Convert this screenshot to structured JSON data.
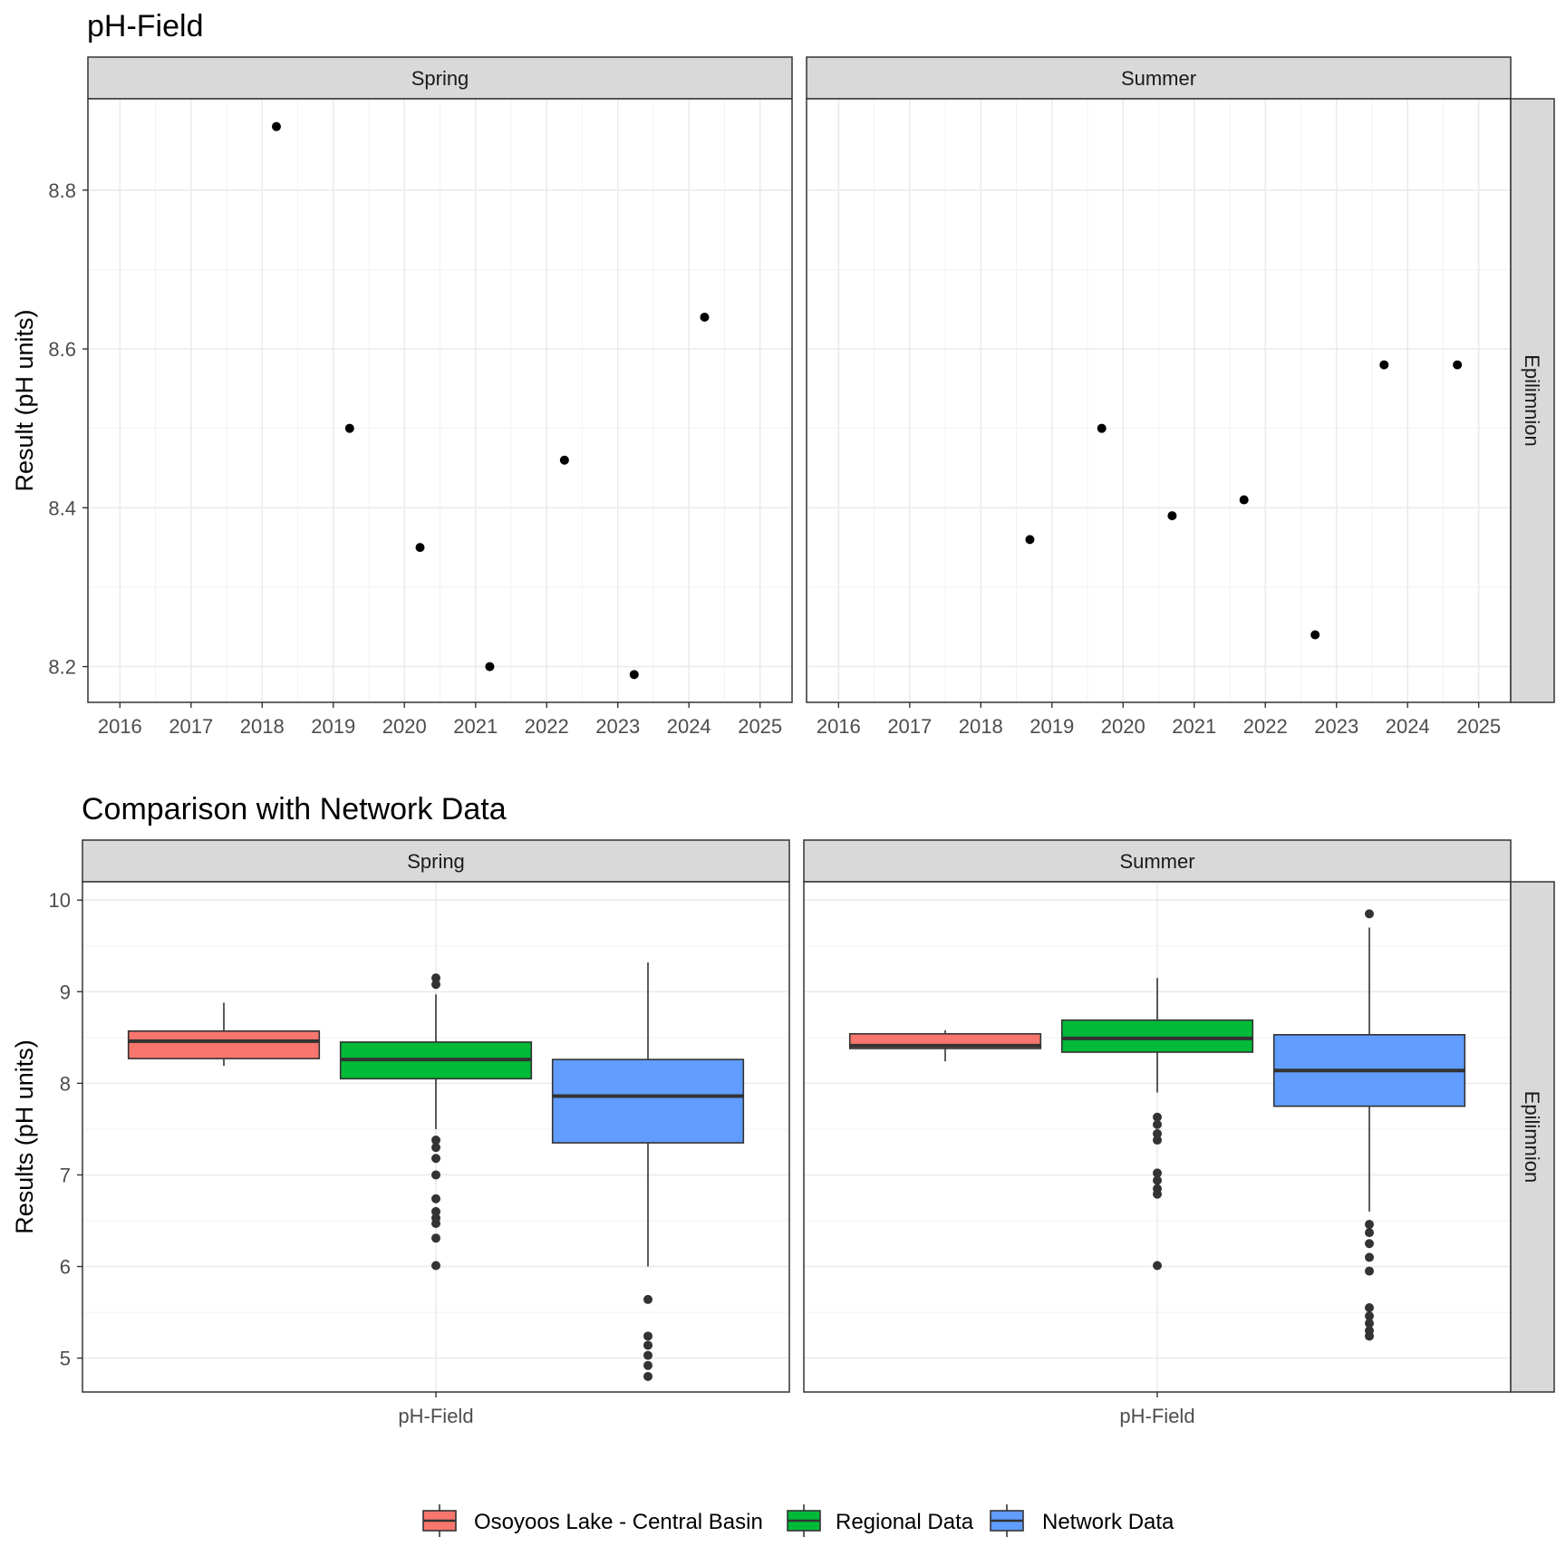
{
  "chart_data": [
    {
      "type": "scatter",
      "title": "pH-Field",
      "ylabel": "Result (pH units)",
      "xlabel": "",
      "xlim": [
        2015.55,
        2025.45
      ],
      "ylim": [
        8.155,
        8.915
      ],
      "x_ticks": [
        2016,
        2017,
        2018,
        2019,
        2020,
        2021,
        2022,
        2023,
        2024,
        2025
      ],
      "y_ticks": [
        8.2,
        8.4,
        8.6,
        8.8
      ],
      "y_tick_labels": [
        "8.2",
        "8.4",
        "8.6",
        "8.8"
      ],
      "row_strip": "Epilimnion",
      "facets": [
        {
          "name": "Spring",
          "points": [
            {
              "x": 2018.2,
              "y": 8.88
            },
            {
              "x": 2019.23,
              "y": 8.5
            },
            {
              "x": 2020.22,
              "y": 8.35
            },
            {
              "x": 2021.2,
              "y": 8.2
            },
            {
              "x": 2022.25,
              "y": 8.46
            },
            {
              "x": 2023.23,
              "y": 8.19
            },
            {
              "x": 2024.22,
              "y": 8.64
            }
          ]
        },
        {
          "name": "Summer",
          "points": [
            {
              "x": 2018.69,
              "y": 8.36
            },
            {
              "x": 2019.7,
              "y": 8.5
            },
            {
              "x": 2020.69,
              "y": 8.39
            },
            {
              "x": 2021.7,
              "y": 8.41
            },
            {
              "x": 2022.7,
              "y": 8.24
            },
            {
              "x": 2023.67,
              "y": 8.58
            },
            {
              "x": 2024.7,
              "y": 8.58
            }
          ]
        }
      ]
    },
    {
      "type": "box",
      "title": "Comparison with Network Data",
      "ylabel": "Results (pH units)",
      "xlabel": "",
      "category": "pH-Field",
      "ylim": [
        4.63,
        10.2
      ],
      "y_ticks": [
        5,
        6,
        7,
        8,
        9,
        10
      ],
      "y_tick_labels": [
        "5",
        "6",
        "7",
        "8",
        "9",
        "10"
      ],
      "row_strip": "Epilimnion",
      "legend_position": "bottom",
      "series": [
        {
          "name": "Osoyoos Lake - Central Basin",
          "color": "#F8766D"
        },
        {
          "name": "Regional Data",
          "color": "#00BA38"
        },
        {
          "name": "Network Data",
          "color": "#619CFF"
        }
      ],
      "facets": [
        {
          "name": "Spring",
          "boxes": [
            {
              "series": "Osoyoos Lake - Central Basin",
              "min": 8.19,
              "q1": 8.27,
              "median": 8.46,
              "q3": 8.57,
              "max": 8.88,
              "outliers": []
            },
            {
              "series": "Regional Data",
              "min": 7.5,
              "q1": 8.05,
              "median": 8.26,
              "q3": 8.45,
              "max": 8.97,
              "outliers": [
                9.15,
                9.08,
                7.38,
                7.3,
                7.18,
                7.0,
                6.74,
                6.6,
                6.53,
                6.47,
                6.31,
                6.01
              ]
            },
            {
              "series": "Network Data",
              "min": 6.0,
              "q1": 7.35,
              "median": 7.86,
              "q3": 8.26,
              "max": 9.32,
              "outliers": [
                5.64,
                5.24,
                5.14,
                5.03,
                4.92,
                4.8
              ]
            }
          ]
        },
        {
          "name": "Summer",
          "boxes": [
            {
              "series": "Osoyoos Lake - Central Basin",
              "min": 8.24,
              "q1": 8.38,
              "median": 8.41,
              "q3": 8.54,
              "max": 8.58,
              "outliers": []
            },
            {
              "series": "Regional Data",
              "min": 7.9,
              "q1": 8.34,
              "median": 8.49,
              "q3": 8.69,
              "max": 9.15,
              "outliers": [
                7.63,
                7.55,
                7.45,
                7.38,
                7.02,
                6.94,
                6.85,
                6.79,
                6.01
              ]
            },
            {
              "series": "Network Data",
              "min": 6.6,
              "q1": 7.75,
              "median": 8.14,
              "q3": 8.53,
              "max": 9.7,
              "outliers": [
                9.85,
                6.46,
                6.37,
                6.25,
                6.1,
                5.95,
                5.55,
                5.46,
                5.38,
                5.3,
                5.24
              ]
            }
          ]
        }
      ]
    }
  ]
}
